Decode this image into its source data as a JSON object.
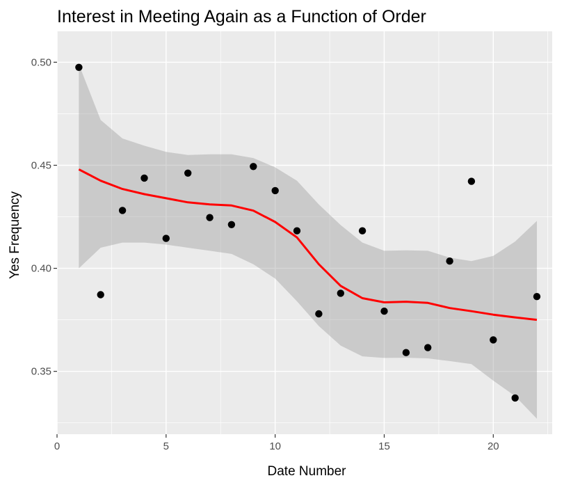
{
  "chart_data": {
    "type": "scatter",
    "title": "Interest in Meeting Again as a Function of Order",
    "xlabel": "Date Number",
    "ylabel": "Yes Frequency",
    "xlim": [
      0,
      22.7
    ],
    "ylim": [
      0.3195,
      0.515
    ],
    "x_ticks": [
      0,
      5,
      10,
      15,
      20
    ],
    "y_ticks": [
      0.35,
      0.4,
      0.45,
      0.5
    ],
    "x_tick_labels": [
      "0",
      "5",
      "10",
      "15",
      "20"
    ],
    "y_tick_labels": [
      "0.35",
      "0.40",
      "0.45",
      "0.50"
    ],
    "grid": true,
    "colors": {
      "panel": "#ebebeb",
      "grid": "#ffffff",
      "points": "#000000",
      "smooth_line": "#ff0000",
      "confidence_band": "#999999"
    },
    "points": [
      {
        "x": 1,
        "y": 0.4975
      },
      {
        "x": 2,
        "y": 0.3872
      },
      {
        "x": 3,
        "y": 0.4281
      },
      {
        "x": 4,
        "y": 0.4438
      },
      {
        "x": 5,
        "y": 0.4145
      },
      {
        "x": 6,
        "y": 0.4462
      },
      {
        "x": 7,
        "y": 0.4246
      },
      {
        "x": 8,
        "y": 0.4212
      },
      {
        "x": 9,
        "y": 0.4494
      },
      {
        "x": 10,
        "y": 0.4377
      },
      {
        "x": 11,
        "y": 0.4182
      },
      {
        "x": 12,
        "y": 0.3779
      },
      {
        "x": 13,
        "y": 0.3879
      },
      {
        "x": 14,
        "y": 0.4182
      },
      {
        "x": 15,
        "y": 0.3792
      },
      {
        "x": 16,
        "y": 0.3591
      },
      {
        "x": 17,
        "y": 0.3615
      },
      {
        "x": 18,
        "y": 0.4035
      },
      {
        "x": 19,
        "y": 0.4422
      },
      {
        "x": 20,
        "y": 0.3653
      },
      {
        "x": 21,
        "y": 0.3371
      },
      {
        "x": 22,
        "y": 0.3863
      }
    ],
    "smooth": {
      "x": [
        1,
        2,
        3,
        4,
        5,
        6,
        7,
        8,
        9,
        10,
        11,
        12,
        13,
        14,
        15,
        16,
        17,
        18,
        19,
        20,
        21,
        22
      ],
      "y": [
        0.448,
        0.4425,
        0.4385,
        0.436,
        0.434,
        0.432,
        0.431,
        0.4305,
        0.428,
        0.4225,
        0.415,
        0.402,
        0.3915,
        0.3855,
        0.3835,
        0.3838,
        0.3832,
        0.3807,
        0.3792,
        0.3775,
        0.3762,
        0.375
      ],
      "lower": [
        0.4,
        0.41,
        0.4125,
        0.4125,
        0.4115,
        0.41,
        0.4085,
        0.407,
        0.402,
        0.395,
        0.384,
        0.372,
        0.3625,
        0.3573,
        0.3565,
        0.3566,
        0.3563,
        0.355,
        0.3535,
        0.3455,
        0.338,
        0.327
      ],
      "upper": [
        0.499,
        0.472,
        0.463,
        0.4595,
        0.4565,
        0.455,
        0.4553,
        0.4553,
        0.4535,
        0.449,
        0.4425,
        0.431,
        0.421,
        0.4125,
        0.4085,
        0.4087,
        0.4085,
        0.4052,
        0.4035,
        0.406,
        0.413,
        0.423
      ]
    }
  }
}
